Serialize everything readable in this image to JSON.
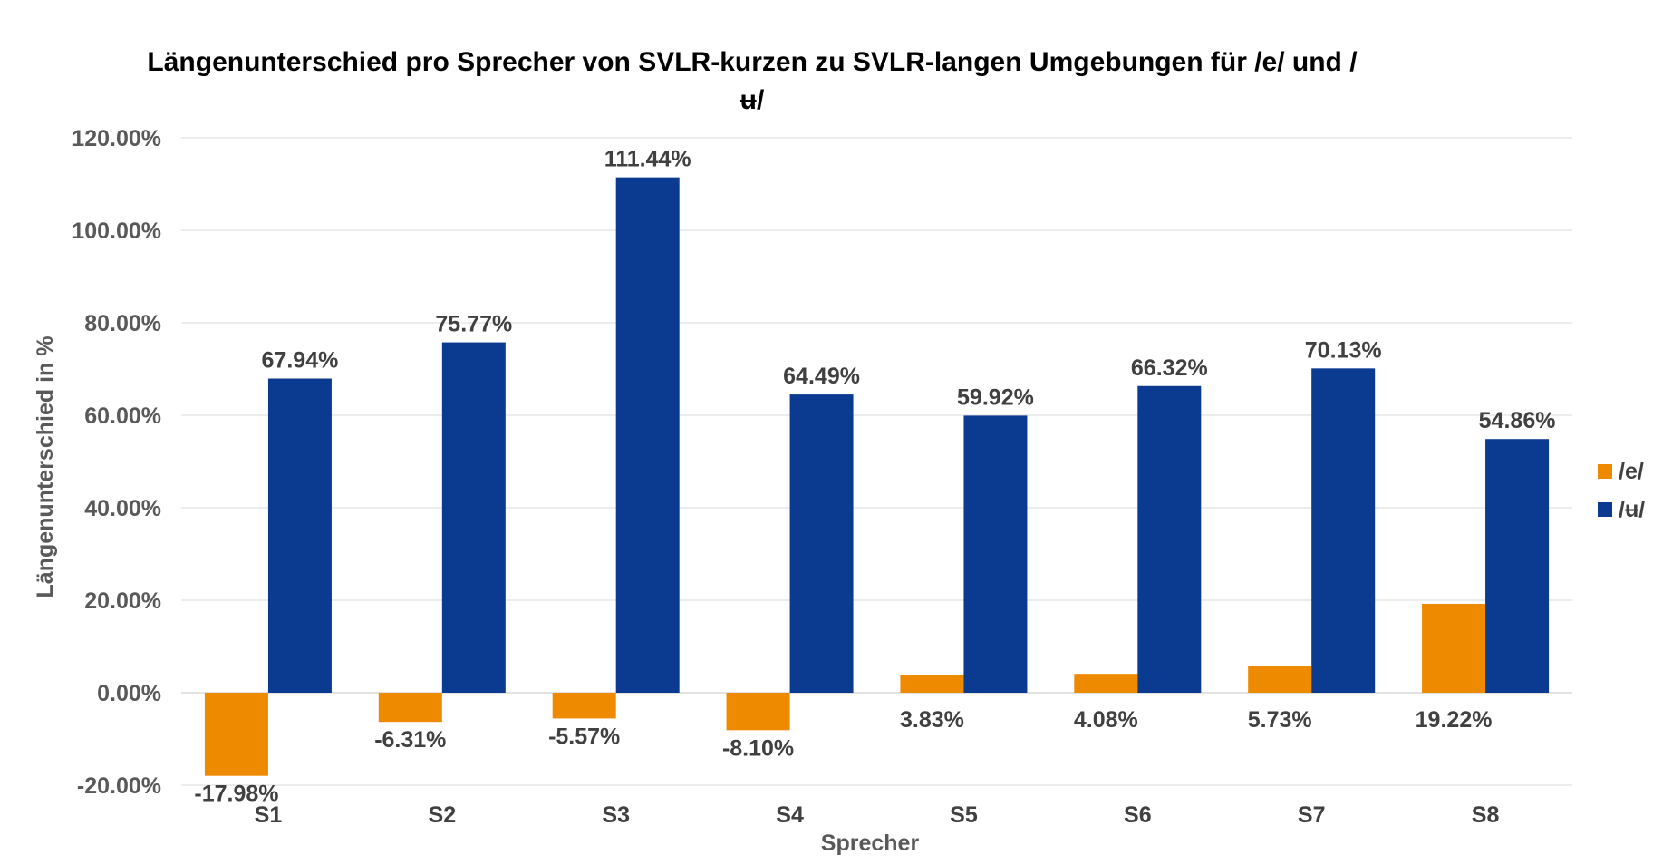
{
  "chart_data": {
    "type": "bar",
    "title": "Längenunterschied pro Sprecher von SVLR-kurzen zu SVLR-langen Umgebungen für /e/ und /ʉ/",
    "xlabel": "Sprecher",
    "ylabel": "Längenunterschied in %",
    "categories": [
      "S1",
      "S2",
      "S3",
      "S4",
      "S5",
      "S6",
      "S7",
      "S8"
    ],
    "series": [
      {
        "name": "/e/",
        "color": "#EE8A00",
        "values": [
          -17.98,
          -6.31,
          -5.57,
          -8.1,
          3.83,
          4.08,
          5.73,
          19.22
        ],
        "labels": [
          "-17.98%",
          "-6.31%",
          "-5.57%",
          "-8.10%",
          "3.83%",
          "4.08%",
          "5.73%",
          "19.22%"
        ]
      },
      {
        "name": "/ʉ/",
        "color": "#0B3A91",
        "values": [
          67.94,
          75.77,
          111.44,
          64.49,
          59.92,
          66.32,
          70.13,
          54.86
        ],
        "labels": [
          "67.94%",
          "75.77%",
          "111.44%",
          "64.49%",
          "59.92%",
          "66.32%",
          "70.13%",
          "54.86%"
        ]
      }
    ],
    "ylim": [
      -20,
      120
    ],
    "yticks": [
      -20,
      0,
      20,
      40,
      60,
      80,
      100,
      120
    ],
    "ytick_labels": [
      "-20.00%",
      "0.00%",
      "20.00%",
      "40.00%",
      "60.00%",
      "80.00%",
      "100.00%",
      "120.00%"
    ],
    "grid": true,
    "legend": "right"
  }
}
